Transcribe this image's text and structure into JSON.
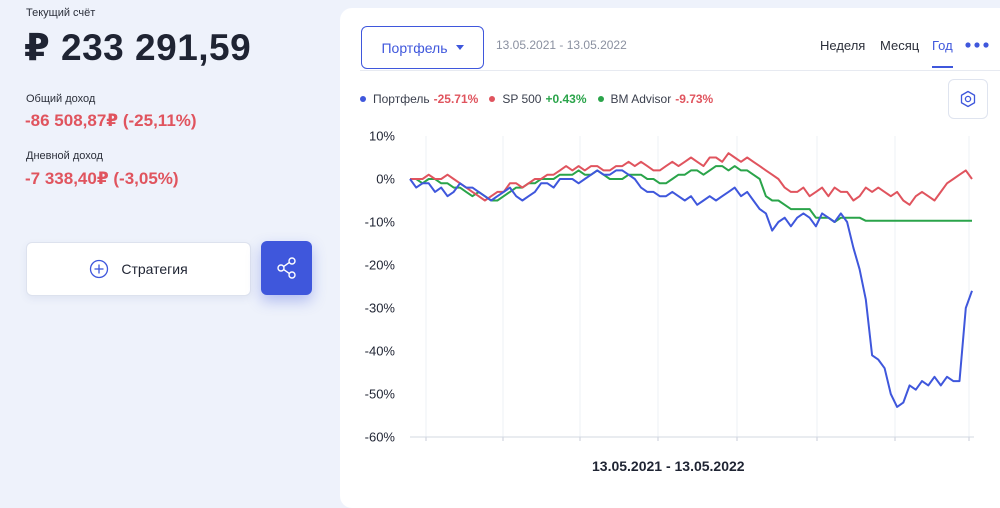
{
  "account": {
    "balance_label": "Текущий счёт",
    "balance": "₽ 233 291,59",
    "total_income_label": "Общий доход",
    "total_income": "-86 508,87₽ (-25,11%)",
    "daily_income_label": "Дневной доход",
    "daily_income": "-7 338,40₽ (-3,05%)"
  },
  "actions": {
    "strategy_label": "Стратегия",
    "share_icon": "share-icon"
  },
  "toolbar": {
    "portfolio_label": "Портфель",
    "date_range": "13.05.2021 - 13.05.2022",
    "periods": [
      "Неделя",
      "Месяц",
      "Год"
    ],
    "active_period": "Год",
    "more_icon": "more-dots-icon",
    "settings_icon": "gear-icon"
  },
  "legend": [
    {
      "name": "Портфель",
      "value": "-25.71%",
      "color": "#3f57dc",
      "value_color": "#e0545e"
    },
    {
      "name": "SP 500",
      "value": "+0.43%",
      "color": "#e0545e",
      "value_color": "#2aa44a"
    },
    {
      "name": "BM Advisor",
      "value": "-9.73%",
      "color": "#2aa44a",
      "value_color": "#e0545e"
    }
  ],
  "chart_data": {
    "type": "line",
    "xlabel": "13.05.2021 - 13.05.2022",
    "ylabel": "",
    "ylim": [
      -60,
      10
    ],
    "yticks": [
      "10%",
      "0%",
      "-10%",
      "-20%",
      "-30%",
      "-40%",
      "-50%",
      "-60%"
    ],
    "ytick_values": [
      10,
      0,
      -10,
      -20,
      -30,
      -40,
      -50,
      -60
    ],
    "grid": "vertical",
    "series": [
      {
        "name": "Портфель",
        "color": "#3f57dc",
        "values": [
          0,
          -2,
          -1,
          -1,
          -3,
          -2,
          -4,
          -3,
          -1,
          -2,
          -2,
          -3,
          -4,
          -5,
          -4,
          -3,
          -2,
          -4,
          -5,
          -4,
          -3,
          -1,
          -1,
          -2,
          0,
          0,
          0,
          -1,
          0,
          1,
          2,
          1,
          1,
          2,
          2,
          1,
          0,
          -2,
          -3,
          -3,
          -4,
          -4,
          -3,
          -4,
          -5,
          -4,
          -6,
          -5,
          -4,
          -5,
          -4,
          -3,
          -2,
          -4,
          -3,
          -5,
          -7,
          -8,
          -12,
          -10,
          -9,
          -11,
          -9,
          -8,
          -9,
          -11,
          -8,
          -9,
          -10,
          -8,
          -10,
          -16,
          -21,
          -28,
          -41,
          -42,
          -44,
          -50,
          -53,
          -52,
          -48,
          -49,
          -47,
          -48,
          -46,
          -48,
          -46,
          -47,
          -47,
          -30,
          -26
        ]
      },
      {
        "name": "SP 500",
        "color": "#e0545e",
        "values": [
          0,
          0,
          0,
          1,
          0,
          0,
          1,
          0,
          -1,
          -2,
          -3,
          -4,
          -5,
          -4,
          -3,
          -3,
          -1,
          -1,
          -2,
          -1,
          0,
          0,
          1,
          1,
          2,
          3,
          2,
          3,
          2,
          3,
          3,
          2,
          2,
          3,
          3,
          4,
          3,
          4,
          3,
          2,
          2,
          3,
          4,
          3,
          4,
          5,
          4,
          3,
          5,
          5,
          4,
          6,
          5,
          4,
          5,
          4,
          3,
          2,
          1,
          0,
          -2,
          -3,
          -3,
          -2,
          -4,
          -3,
          -2,
          -4,
          -2,
          -3,
          -3,
          -5,
          -4,
          -2,
          -3,
          -2,
          -3,
          -4,
          -3,
          -5,
          -6,
          -4,
          -3,
          -4,
          -5,
          -3,
          -1,
          0,
          1,
          2,
          0
        ]
      },
      {
        "name": "BM Advisor",
        "color": "#2aa44a",
        "values": [
          0,
          0,
          -1,
          0,
          0,
          -1,
          -1,
          -2,
          -2,
          -3,
          -4,
          -3,
          -4,
          -5,
          -5,
          -4,
          -3,
          -2,
          -2,
          -1,
          -1,
          0,
          0,
          0,
          1,
          1,
          1,
          2,
          1,
          1,
          2,
          1,
          0,
          0,
          0,
          1,
          1,
          1,
          0,
          0,
          -1,
          -1,
          0,
          1,
          1,
          2,
          2,
          1,
          2,
          3,
          3,
          2,
          3,
          2,
          2,
          1,
          0,
          -4,
          -5,
          -5,
          -6,
          -7,
          -7,
          -7,
          -7,
          -9,
          -9,
          -9,
          -10,
          -9,
          -9,
          -9,
          -9,
          -9.73,
          -9.73,
          -9.73,
          -9.73,
          -9.73,
          -9.73,
          -9.73,
          -9.73,
          -9.73,
          -9.73,
          -9.73,
          -9.73,
          -9.73,
          -9.73,
          -9.73,
          -9.73,
          -9.73,
          -9.73
        ]
      }
    ]
  }
}
